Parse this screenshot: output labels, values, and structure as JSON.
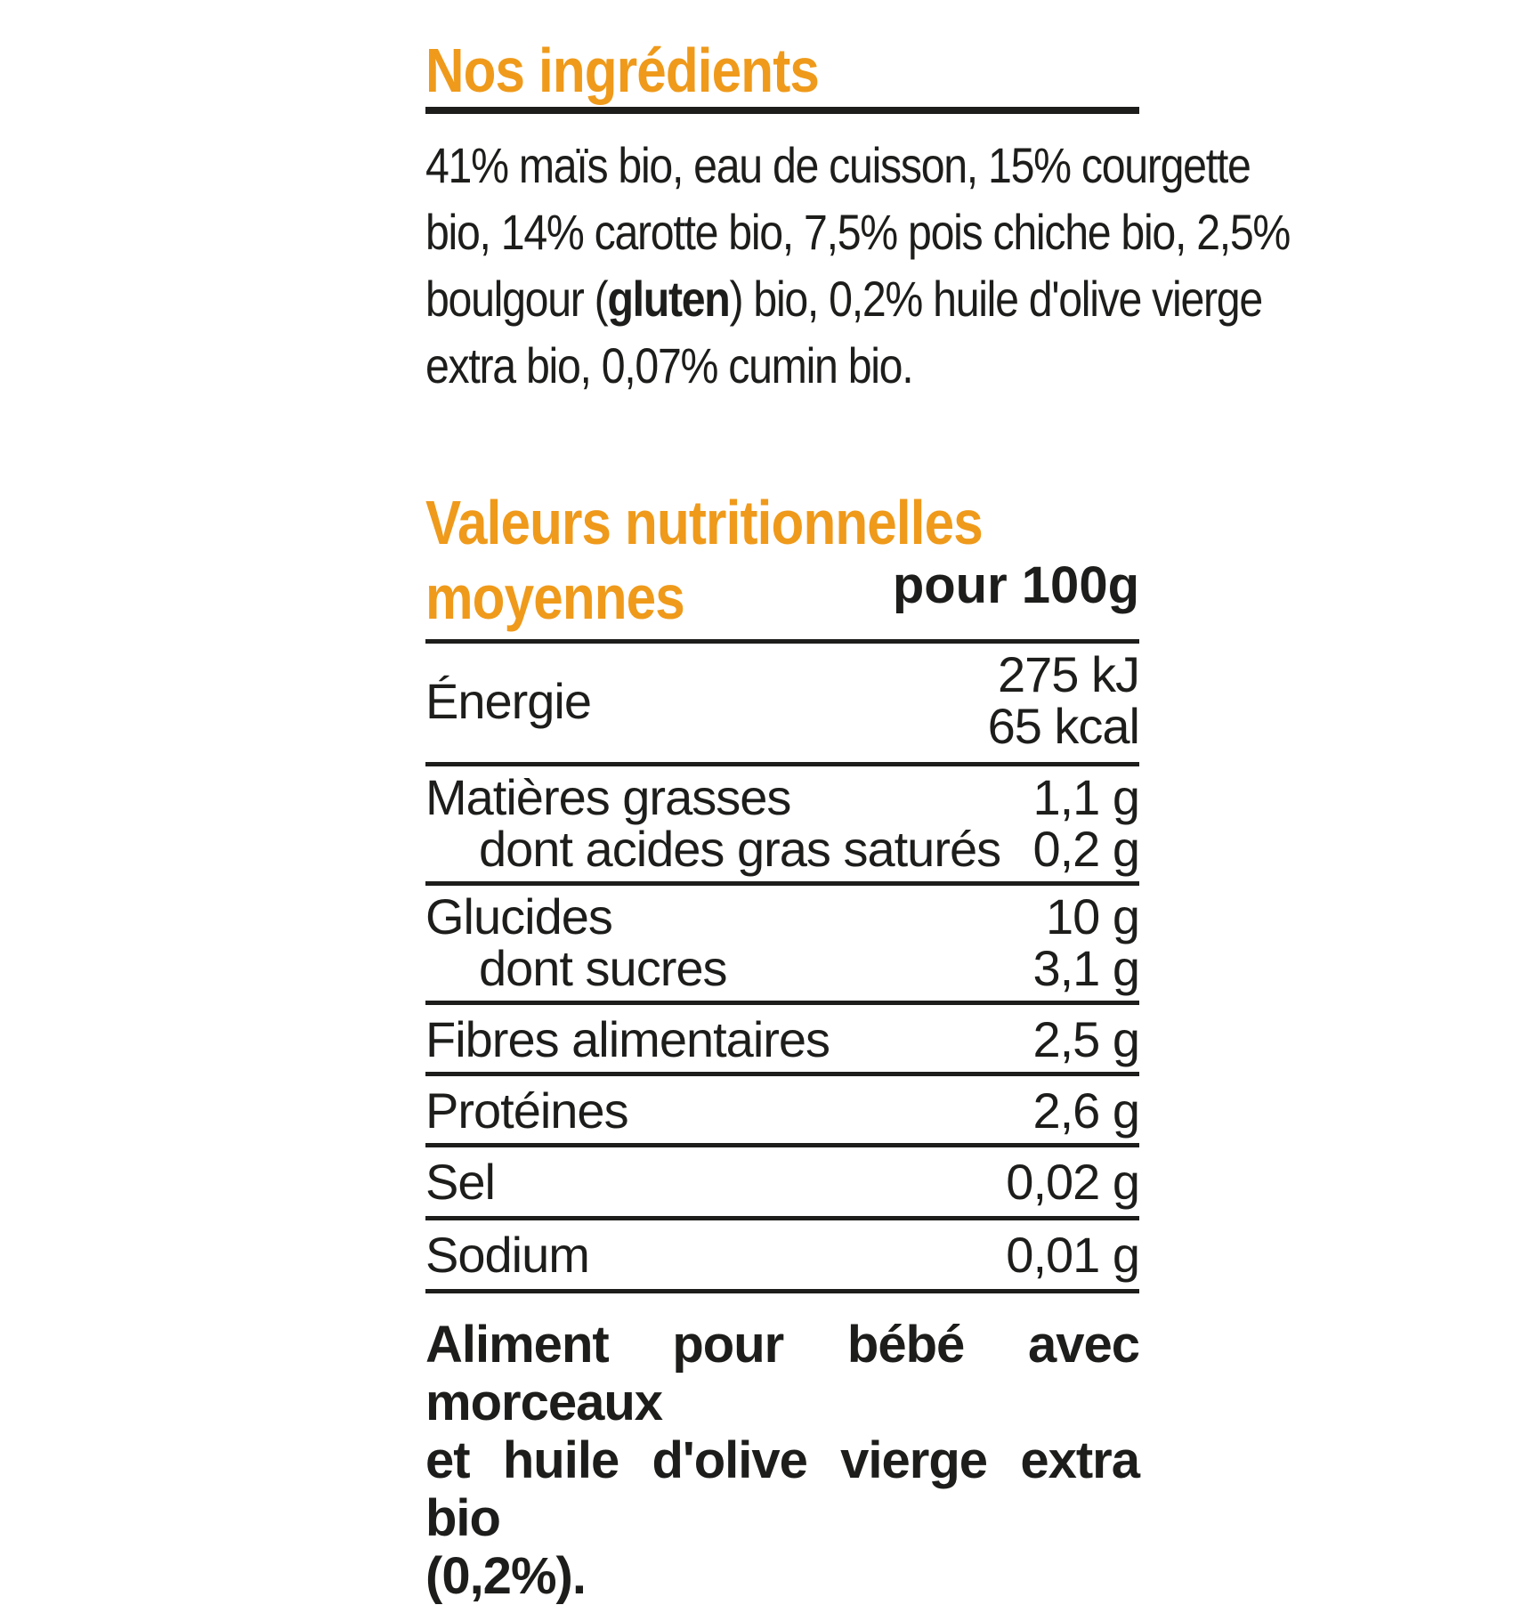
{
  "ingredients": {
    "heading": "Nos ingrédients",
    "lines": [
      "41% maïs bio, eau de cuisson, 15% courgette",
      "bio, 14% carotte bio, 7,5% pois chiche bio, 2,5%",
      "boulgour (gluten) bio, 0,2% huile d'olive vierge",
      "extra bio, 0,07% cumin bio."
    ]
  },
  "nutrition": {
    "heading_line1": "Valeurs nutritionnelles",
    "heading_line2": "moyennes",
    "per": "pour 100g",
    "rows": [
      {
        "label": "Énergie",
        "value1": "275 kJ",
        "value2": "65 kcal"
      },
      {
        "label": "Matières grasses",
        "value": "1,1 g"
      },
      {
        "label": "dont acides gras saturés",
        "value": "0,2 g"
      },
      {
        "label": "Glucides",
        "value": "10 g"
      },
      {
        "label": "dont sucres",
        "value": "3,1 g"
      },
      {
        "label": "Fibres alimentaires",
        "value": "2,5 g"
      },
      {
        "label": "Protéines",
        "value": "2,6 g"
      },
      {
        "label": "Sel",
        "value": "0,02 g"
      },
      {
        "label": "Sodium",
        "value": "0,01 g"
      }
    ]
  },
  "footer": {
    "line1": "Aliment pour bébé avec morceaux",
    "line2": "et huile d'olive vierge extra bio",
    "line3": "(0,2%)."
  },
  "colors": {
    "accent": "#ef9a1b",
    "text": "#1d1d1b"
  }
}
